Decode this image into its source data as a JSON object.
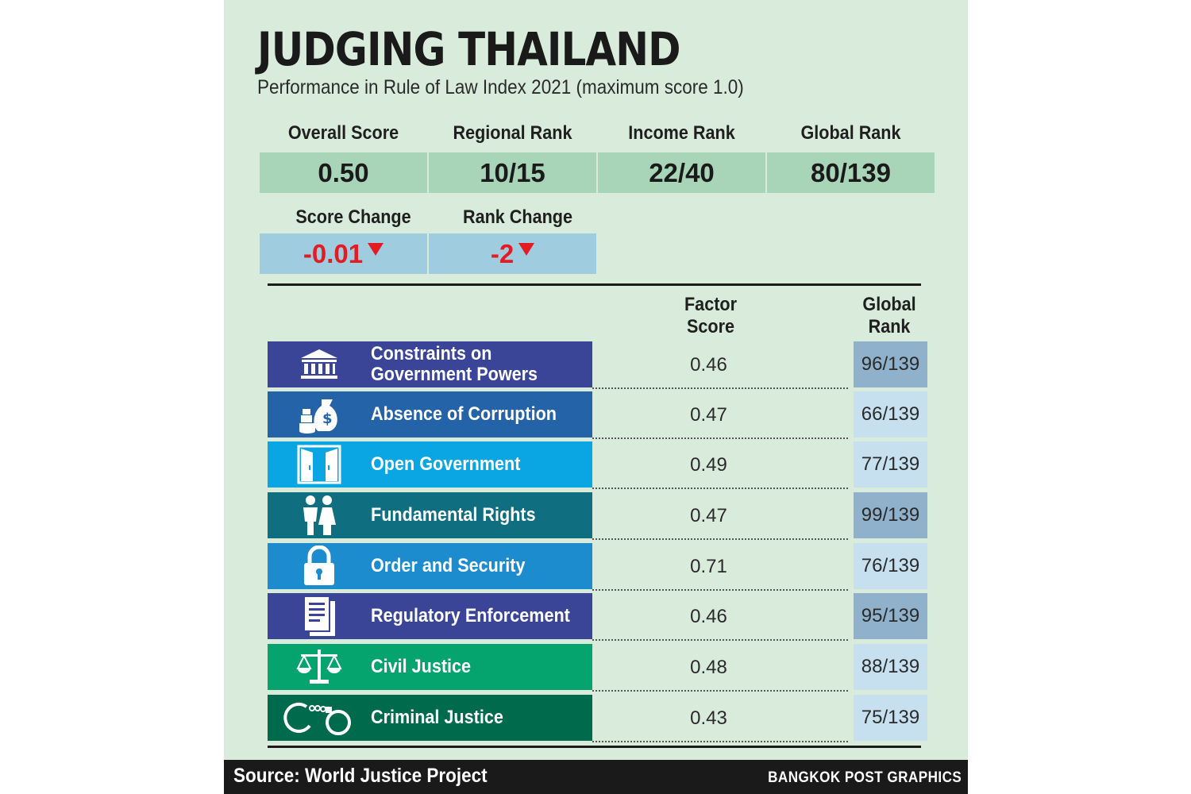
{
  "title": "JUDGING THAILAND",
  "subtitle": "Performance in Rule of Law Index 2021 (maximum score 1.0)",
  "summary": {
    "overall_score_label": "Overall Score",
    "overall_score": "0.50",
    "regional_rank_label": "Regional Rank",
    "regional_rank": "10/15",
    "income_rank_label": "Income Rank",
    "income_rank": "22/40",
    "global_rank_label": "Global Rank",
    "global_rank": "80/139",
    "score_change_label": "Score Change",
    "score_change": "-0.01",
    "rank_change_label": "Rank Change",
    "rank_change": "-2"
  },
  "table": {
    "factor_score_header": [
      "Factor",
      "Score"
    ],
    "global_rank_header": [
      "Global",
      "Rank"
    ],
    "rows": [
      {
        "label1": "Constraints on",
        "label2": "Government Powers",
        "icon": "government-building-icon",
        "score": "0.46",
        "rank": "96/139",
        "bar_color": "#3b4597",
        "rank_shade": "dark"
      },
      {
        "label1": "Absence of Corruption",
        "label2": "",
        "icon": "money-bag-icon",
        "score": "0.47",
        "rank": "66/139",
        "bar_color": "#2463a8",
        "rank_shade": "light"
      },
      {
        "label1": "Open Government",
        "label2": "",
        "icon": "open-doors-icon",
        "score": "0.49",
        "rank": "77/139",
        "bar_color": "#0aa6e3",
        "rank_shade": "light"
      },
      {
        "label1": "Fundamental Rights",
        "label2": "",
        "icon": "people-icon",
        "score": "0.47",
        "rank": "99/139",
        "bar_color": "#0f6e80",
        "rank_shade": "dark"
      },
      {
        "label1": "Order and Security",
        "label2": "",
        "icon": "padlock-icon",
        "score": "0.71",
        "rank": "76/139",
        "bar_color": "#1c8ccf",
        "rank_shade": "light"
      },
      {
        "label1": "Regulatory Enforcement",
        "label2": "",
        "icon": "documents-icon",
        "score": "0.46",
        "rank": "95/139",
        "bar_color": "#3b4597",
        "rank_shade": "dark"
      },
      {
        "label1": "Civil Justice",
        "label2": "",
        "icon": "scales-icon",
        "score": "0.48",
        "rank": "88/139",
        "bar_color": "#05a36e",
        "rank_shade": "light"
      },
      {
        "label1": "Criminal Justice",
        "label2": "",
        "icon": "handcuffs-icon",
        "score": "0.43",
        "rank": "75/139",
        "bar_color": "#006a4c",
        "rank_shade": "light"
      }
    ]
  },
  "colors": {
    "background": "#d9ecdc",
    "stat_box": "#a8d4b8",
    "change_box": "#9fcddf",
    "negative": "#e51b23",
    "rank_dark": "#8fb1cc",
    "rank_light": "#c6e0f0"
  },
  "footer": {
    "source": "Source: World Justice Project",
    "credit": "BANGKOK POST GRAPHICS"
  }
}
